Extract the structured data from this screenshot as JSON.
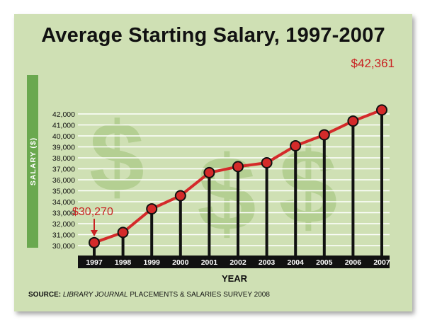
{
  "colors": {
    "background": "#cfe0b4",
    "axis_bar": "#6aa84f",
    "line": "#d42a2a",
    "label_red": "#c92222",
    "stem": "#111111",
    "dollar_watermark": "#b4cf92"
  },
  "watermark_icon": "dollar-sign-icon",
  "annotation_start": "$30,270",
  "annotation_end": "$42,361",
  "source": {
    "prefix": "SOURCE:",
    "publication": "LIBRARY JOURNAL",
    "rest": "PLACEMENTS & SALARIES SURVEY 2008"
  },
  "chart_data": {
    "type": "line",
    "title": "Average Starting Salary, 1997-2007",
    "xlabel": "YEAR",
    "ylabel": "SALARY ($)",
    "categories": [
      "1997",
      "1998",
      "1999",
      "2000",
      "2001",
      "2002",
      "2003",
      "2004",
      "2005",
      "2006",
      "2007"
    ],
    "values": [
      30270,
      31200,
      33350,
      34550,
      36650,
      37200,
      37550,
      39100,
      40100,
      41350,
      42361
    ],
    "yticks": [
      30000,
      31000,
      32000,
      33000,
      34000,
      35000,
      36000,
      37000,
      38000,
      39000,
      40000,
      41000,
      42000
    ],
    "ytick_labels": [
      "30,000",
      "31,000",
      "32,000",
      "33,000",
      "34,000",
      "35,000",
      "36,000",
      "37,000",
      "38,000",
      "39,000",
      "40,000",
      "41,000",
      "42,000"
    ],
    "ylim": [
      30000,
      42361
    ],
    "grid": true
  }
}
